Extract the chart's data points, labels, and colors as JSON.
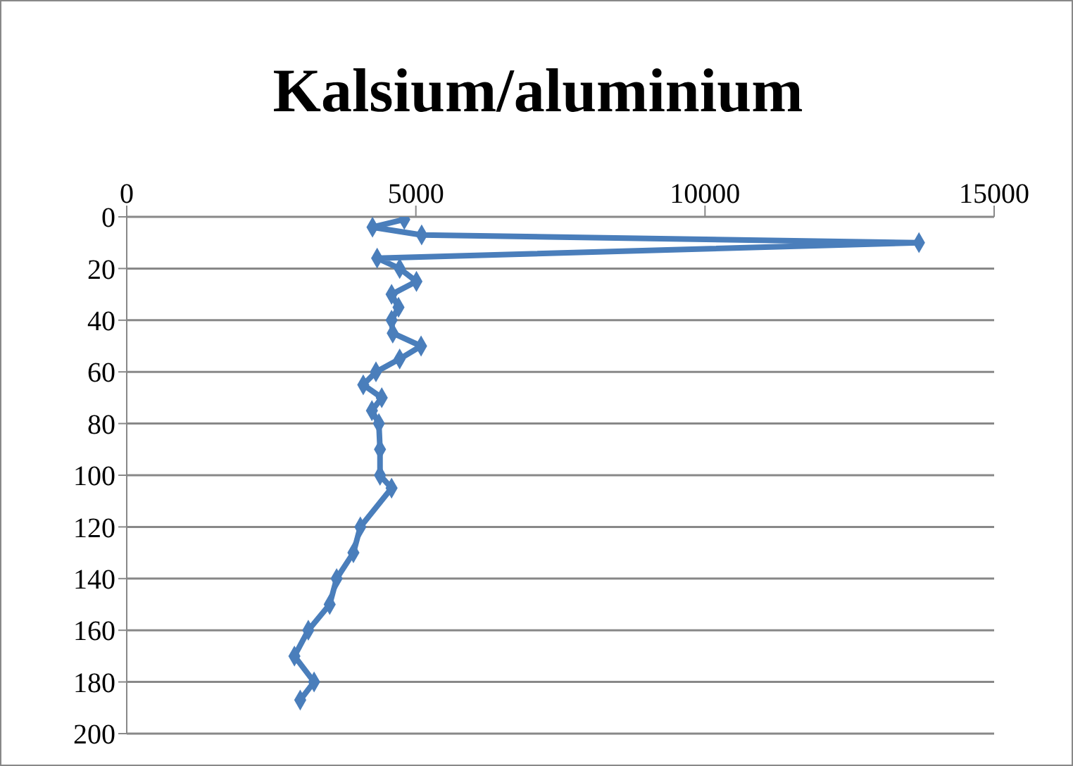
{
  "chart_data": {
    "type": "line",
    "title": "Kalsium/aluminium",
    "x": [
      4800,
      4250,
      5100,
      13700,
      4330,
      4720,
      5010,
      4580,
      4700,
      4580,
      4600,
      5090,
      4720,
      4310,
      4090,
      4410,
      4240,
      4360,
      4380,
      4380,
      4580,
      4040,
      3920,
      3630,
      3510,
      3140,
      2900,
      3240,
      3000
    ],
    "series": [
      {
        "color": "#4a7ebb",
        "values": [
          1,
          4,
          7,
          10,
          16,
          20,
          25,
          30,
          35,
          40,
          45,
          50,
          55,
          60,
          65,
          70,
          75,
          80,
          90,
          100,
          105,
          120,
          130,
          140,
          150,
          160,
          170,
          180,
          187
        ]
      }
    ],
    "xlim": [
      0,
      15000
    ],
    "xticks": [
      0,
      5000,
      10000,
      15000
    ],
    "ylim": [
      200,
      0
    ],
    "yticks": [
      0,
      20,
      40,
      60,
      80,
      100,
      120,
      140,
      160,
      180,
      200
    ],
    "grid": "y",
    "marker": "diamond",
    "line_style": "solid"
  }
}
